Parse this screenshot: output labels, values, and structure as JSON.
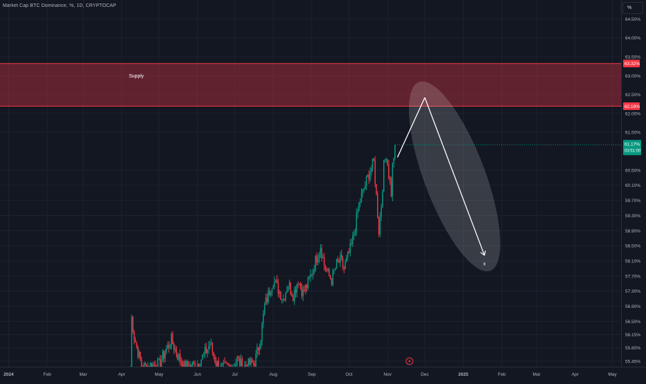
{
  "header": {
    "title": "Market Cap BTC Dominance, %, 1D, CRYPTOCAP",
    "unit_button": "%"
  },
  "chart_data": {
    "type": "candlestick",
    "title": "Market Cap BTC Dominance, %, 1D, CRYPTOCAP",
    "ylabel": "%",
    "ylim": [
      55.3,
      65.0
    ],
    "y_ticks": [
      "64.50%",
      "64.00%",
      "63.50%",
      "63.00%",
      "62.50%",
      "62.00%",
      "61.50%",
      "60.50%",
      "60.10%",
      "59.70%",
      "59.30%",
      "58.90%",
      "58.50%",
      "58.10%",
      "57.70%",
      "57.30%",
      "56.90%",
      "56.50%",
      "56.15%",
      "55.80%",
      "55.45%"
    ],
    "y_tick_values": [
      64.5,
      64.0,
      63.5,
      63.0,
      62.5,
      62.0,
      61.5,
      60.5,
      60.1,
      59.7,
      59.3,
      58.9,
      58.5,
      58.1,
      57.7,
      57.3,
      56.9,
      56.5,
      56.15,
      55.8,
      55.45
    ],
    "x_ticks": [
      "2024",
      "Feb",
      "Mar",
      "Apr",
      "May",
      "Jun",
      "Jul",
      "Aug",
      "Sep",
      "Oct",
      "Nov",
      "Dec",
      "2025",
      "Feb",
      "Mar",
      "Apr",
      "May"
    ],
    "x_tick_days": [
      0,
      31,
      60,
      91,
      121,
      152,
      182,
      213,
      244,
      274,
      305,
      335,
      366,
      397,
      425,
      456,
      486
    ],
    "x_tick_bold": [
      true,
      false,
      false,
      false,
      false,
      false,
      false,
      false,
      false,
      false,
      false,
      false,
      true,
      false,
      false,
      false,
      false
    ],
    "x_range_days": [
      -7,
      493
    ],
    "price_labels": [
      {
        "text": "63.32%",
        "value": 63.32,
        "color": "#f23645"
      },
      {
        "text": "62.19%",
        "value": 62.19,
        "color": "#f23645"
      }
    ],
    "current": {
      "value": 61.17,
      "price_text": "61.17%",
      "countdown": "03:51:00",
      "color": "#089981"
    },
    "supply_zone": {
      "label": "Supply",
      "top": 63.32,
      "bottom": 62.19,
      "color": "#f23645"
    },
    "projection": {
      "points": [
        [
          313,
          60.84
        ],
        [
          335,
          62.42
        ],
        [
          383,
          58.25
        ]
      ],
      "end_label": "x",
      "end_label_point": [
        383,
        57.98
      ],
      "color": "#ffffff"
    },
    "anchors": [
      [
        98,
        55.2
      ],
      [
        99,
        56.6
      ],
      [
        101,
        56.1
      ],
      [
        104,
        55.7
      ],
      [
        107,
        55.3
      ],
      [
        121,
        55.35
      ],
      [
        126,
        55.7
      ],
      [
        131,
        56.0
      ],
      [
        136,
        55.6
      ],
      [
        141,
        55.3
      ],
      [
        151,
        55.35
      ],
      [
        157,
        55.6
      ],
      [
        162,
        55.9
      ],
      [
        167,
        55.4
      ],
      [
        172,
        55.25
      ],
      [
        180,
        55.3
      ],
      [
        184,
        55.5
      ],
      [
        188,
        55.3
      ],
      [
        198,
        55.4
      ],
      [
        203,
        56.1
      ],
      [
        206,
        56.9
      ],
      [
        210,
        57.3
      ],
      [
        213,
        57.6
      ],
      [
        217,
        57.35
      ],
      [
        221,
        57.1
      ],
      [
        225,
        57.5
      ],
      [
        229,
        57.2
      ],
      [
        233,
        57.6
      ],
      [
        237,
        57.25
      ],
      [
        241,
        57.5
      ],
      [
        245,
        57.9
      ],
      [
        249,
        58.3
      ],
      [
        251,
        58.5
      ],
      [
        254,
        58.0
      ],
      [
        257,
        57.75
      ],
      [
        260,
        57.6
      ],
      [
        264,
        58.0
      ],
      [
        267,
        58.1
      ],
      [
        270,
        57.9
      ],
      [
        273,
        58.2
      ],
      [
        276,
        58.5
      ],
      [
        279,
        59.0
      ],
      [
        282,
        59.6
      ],
      [
        285,
        59.9
      ],
      [
        288,
        60.2
      ],
      [
        291,
        60.5
      ],
      [
        294,
        60.7
      ],
      [
        296,
        59.8
      ],
      [
        298,
        58.9
      ],
      [
        300,
        59.6
      ],
      [
        302,
        60.6
      ],
      [
        304,
        60.95
      ],
      [
        306,
        60.4
      ],
      [
        308,
        59.9
      ],
      [
        309,
        60.6
      ],
      [
        311,
        61.17
      ]
    ]
  }
}
